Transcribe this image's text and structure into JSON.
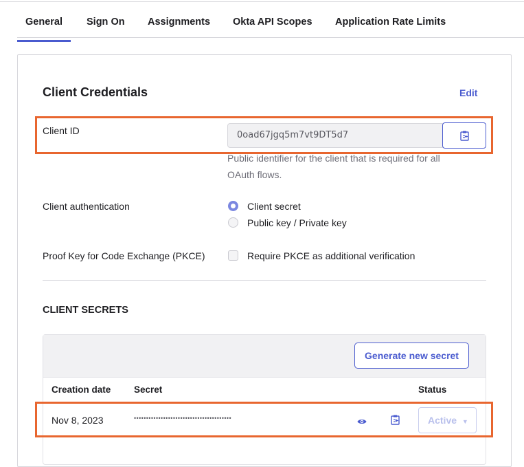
{
  "tabs": [
    {
      "label": "General",
      "active": true
    },
    {
      "label": "Sign On"
    },
    {
      "label": "Assignments"
    },
    {
      "label": "Okta API Scopes"
    },
    {
      "label": "Application Rate Limits"
    }
  ],
  "credentials": {
    "title": "Client Credentials",
    "edit_label": "Edit",
    "client_id_label": "Client ID",
    "client_id_value": "0oad67jgq5m7vt9DT5d7",
    "client_id_help": "Public identifier for the client that is required for all OAuth flows.",
    "auth_label": "Client authentication",
    "auth_options": [
      {
        "label": "Client secret",
        "selected": true
      },
      {
        "label": "Public key / Private key",
        "selected": false
      }
    ],
    "pkce_label": "Proof Key for Code Exchange (PKCE)",
    "pkce_option": "Require PKCE as additional verification",
    "pkce_checked": false
  },
  "secrets": {
    "title": "CLIENT SECRETS",
    "generate_label": "Generate new secret",
    "columns": [
      "Creation date",
      "Secret",
      "Status"
    ],
    "rows": [
      {
        "date": "Nov 8, 2023",
        "secret": "••••••••••••••••••••••••••••••••••••••••",
        "status": "Active"
      }
    ]
  },
  "colors": {
    "accent": "#4a5bcf",
    "highlight": "#e8662f"
  }
}
